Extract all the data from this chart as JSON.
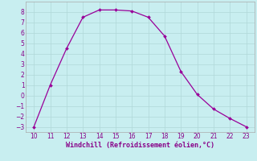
{
  "x": [
    10,
    11,
    12,
    13,
    14,
    15,
    16,
    17,
    18,
    19,
    20,
    21,
    22,
    23
  ],
  "y": [
    -3.0,
    1.0,
    4.5,
    7.5,
    8.2,
    8.2,
    8.1,
    7.5,
    5.7,
    2.3,
    0.1,
    -1.3,
    -2.2,
    -3.0
  ],
  "line_color": "#990099",
  "marker_color": "#990099",
  "bg_color": "#c8eef0",
  "grid_color": "#b0d8d8",
  "xlabel": "Windchill (Refroidissement éolien,°C)",
  "xlabel_color": "#880088",
  "xlim": [
    9.5,
    23.5
  ],
  "ylim": [
    -3.5,
    9.0
  ],
  "xticks": [
    10,
    11,
    12,
    13,
    14,
    15,
    16,
    17,
    18,
    19,
    20,
    21,
    22,
    23
  ],
  "yticks": [
    -3,
    -2,
    -1,
    0,
    1,
    2,
    3,
    4,
    5,
    6,
    7,
    8
  ],
  "tick_color": "#880088",
  "tick_fontsize": 5.5,
  "xlabel_fontsize": 6.0,
  "spine_color": "#aaaaaa"
}
